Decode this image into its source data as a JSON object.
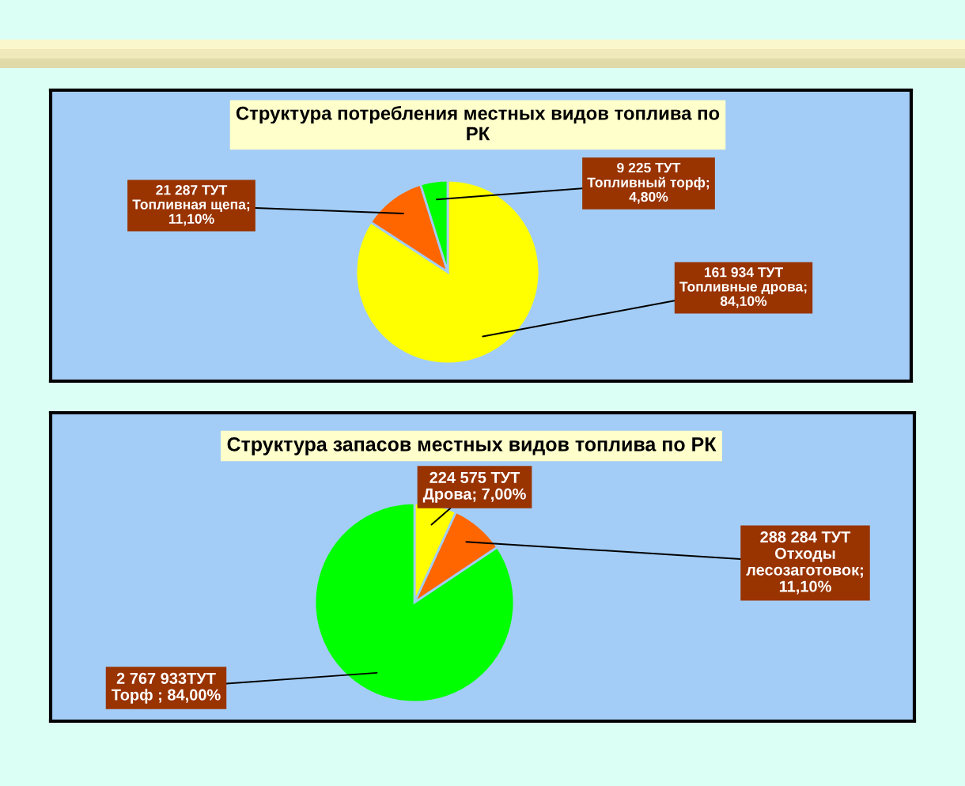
{
  "chart_data": [
    {
      "type": "pie",
      "title": "Структура потребления местных видов топлива по\nРК",
      "categories": [
        null,
        null,
        null
      ],
      "values": [
        161934,
        21287,
        9225
      ],
      "colors": [
        "#ffff00",
        "#ff6600",
        "#00ff00"
      ],
      "value_labels": [
        "161 934 ТУТ\nТопливные дрова;\n84,10%",
        "21 287 ТУТ\nТопливная щепа;\n11,10%",
        "9 225 ТУТ\nТопливный торф;\n4,80%"
      ]
    },
    {
      "type": "pie",
      "title": "Структура запасов местных видов топлива по РК",
      "categories": [
        null,
        null,
        null
      ],
      "values": [
        224575,
        288284,
        2767933
      ],
      "colors": [
        "#ffff00",
        "#ff6600",
        "#00ff00"
      ],
      "value_labels": [
        "224 575 ТУТ\nДрова; 7,00%",
        "288 284 ТУТ\nОтходы\nлесозаготовок;\n11,10%",
        "2 767 933ТУТ\nТорф ; 84,00%"
      ]
    }
  ]
}
